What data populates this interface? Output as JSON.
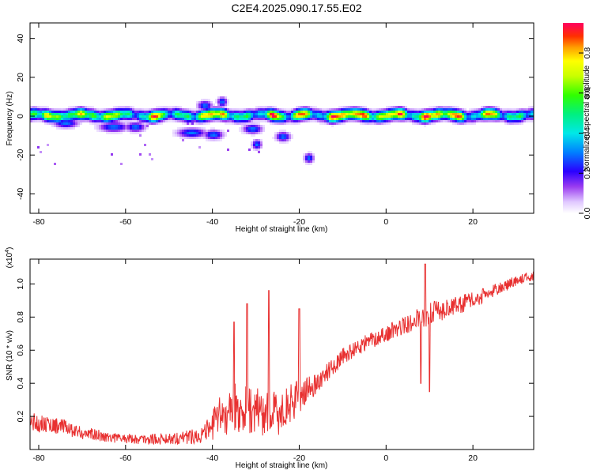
{
  "title": "C2E4.2025.090.17.55.E02",
  "colors": {
    "snr_line": "#e83030",
    "frame": "#000000"
  },
  "chart_data": [
    {
      "type": "heatmap",
      "xlabel": "Height of straight line (km)",
      "ylabel": "Frequency (Hz)",
      "xlim": [
        -82,
        34
      ],
      "ylim": [
        -50,
        48
      ],
      "x_ticks": [
        -80,
        -60,
        -40,
        -20,
        0,
        20
      ],
      "x_tick_labels": [
        "-80",
        "-60",
        "-40",
        "-20",
        "0",
        "20"
      ],
      "y_ticks": [
        -40,
        -20,
        0,
        20,
        40
      ],
      "y_tick_labels": [
        "-40",
        "-20",
        "0",
        "20",
        "40"
      ],
      "colorbar": {
        "label": "Normalized spectral amplitude",
        "range": [
          0,
          0.95
        ],
        "ticks": [
          0.0,
          0.2,
          0.4,
          0.6,
          0.8
        ],
        "tick_labels": [
          "0.0",
          "0.2",
          "0.4",
          "0.6",
          "0.8"
        ]
      },
      "band": {
        "center_freq_hz": 1,
        "halfwidth_hz": 3,
        "peaks_km": [
          -78,
          -71,
          -64,
          -53,
          -42,
          -38,
          -26,
          -20,
          -12,
          -9,
          -6,
          -1,
          3,
          9,
          12,
          16,
          24
        ]
      },
      "secondary_blobs": [
        {
          "x": -74,
          "y": -3,
          "w": 2.5
        },
        {
          "x": -63,
          "y": -5,
          "w": 3
        },
        {
          "x": -58,
          "y": -5,
          "w": 2
        },
        {
          "x": -45,
          "y": -8,
          "w": 3
        },
        {
          "x": -40,
          "y": -9,
          "w": 2
        },
        {
          "x": -31,
          "y": -6,
          "w": 2
        },
        {
          "x": -24,
          "y": -10,
          "w": 1.5
        },
        {
          "x": -18,
          "y": -21,
          "w": 1
        },
        {
          "x": -30,
          "y": -14,
          "w": 1
        },
        {
          "x": -42,
          "y": 6,
          "w": 1.5
        },
        {
          "x": -38,
          "y": 8,
          "w": 1
        }
      ]
    },
    {
      "type": "line",
      "xlabel": "Height of straight line (km)",
      "ylabel": "SNR (10 * v/v)",
      "y_scale_label": "(x10",
      "y_scale_exp": "4",
      "xlim": [
        -82,
        34
      ],
      "ylim": [
        0,
        1.15
      ],
      "x_ticks": [
        -80,
        -60,
        -40,
        -20,
        0,
        20
      ],
      "x_tick_labels": [
        "-80",
        "-60",
        "-40",
        "-20",
        "0",
        "20"
      ],
      "y_ticks": [
        0.2,
        0.4,
        0.6,
        0.8,
        1.0
      ],
      "y_tick_labels": [
        "0.2",
        "0.4",
        "0.6",
        "0.8",
        "1.0"
      ],
      "trend": {
        "x": [
          -82,
          -75,
          -70,
          -62,
          -55,
          -48,
          -42,
          -38,
          -35,
          -30,
          -25,
          -20,
          -16,
          -10,
          -5,
          0,
          5,
          10,
          15,
          20,
          25,
          30,
          34
        ],
        "y": [
          0.17,
          0.14,
          0.1,
          0.07,
          0.06,
          0.07,
          0.09,
          0.2,
          0.25,
          0.23,
          0.21,
          0.32,
          0.4,
          0.56,
          0.64,
          0.7,
          0.76,
          0.82,
          0.86,
          0.9,
          0.96,
          1.02,
          1.05
        ],
        "noise": [
          0.06,
          0.05,
          0.04,
          0.03,
          0.03,
          0.04,
          0.05,
          0.14,
          0.15,
          0.15,
          0.14,
          0.1,
          0.06,
          0.05,
          0.05,
          0.05,
          0.06,
          0.07,
          0.06,
          0.05,
          0.04,
          0.03,
          0.03
        ]
      },
      "spikes": [
        {
          "x": -27,
          "y": 0.96
        },
        {
          "x": -32,
          "y": 0.88
        },
        {
          "x": -35,
          "y": 0.77
        },
        {
          "x": -20,
          "y": 0.85
        },
        {
          "x": 9,
          "y": 1.12
        },
        {
          "x": 8,
          "y": 0.4
        },
        {
          "x": 10,
          "y": 0.35
        }
      ]
    }
  ]
}
